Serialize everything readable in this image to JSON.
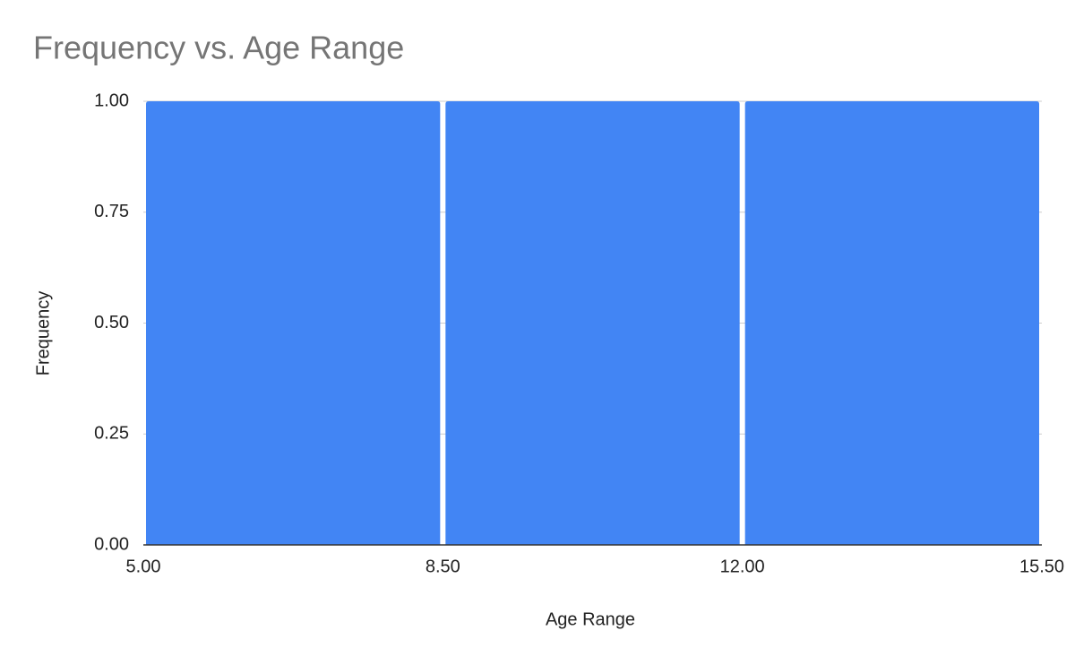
{
  "chart_data": {
    "type": "histogram",
    "title": "Frequency vs. Age Range",
    "x_label": "Age Range",
    "y_label": "Frequency",
    "bins": [
      5,
      8.5,
      12,
      15.5
    ],
    "values": [
      1,
      1,
      1
    ],
    "color": "#4285f4",
    "xlim": [
      5,
      15.5
    ],
    "ylim": [
      0,
      1
    ],
    "xticks": [
      {
        "value": 5,
        "label": "5.00"
      },
      {
        "value": 8.5,
        "label": "8.50"
      },
      {
        "value": 12,
        "label": "12.00"
      },
      {
        "value": 15.5,
        "label": "15.50"
      }
    ],
    "yticks": [
      {
        "value": 0,
        "label": "0.00"
      },
      {
        "value": 0.25,
        "label": "0.25"
      },
      {
        "value": 0.5,
        "label": "0.50"
      },
      {
        "value": 0.75,
        "label": "0.75"
      },
      {
        "value": 1,
        "label": "1.00"
      }
    ],
    "grid": true
  }
}
